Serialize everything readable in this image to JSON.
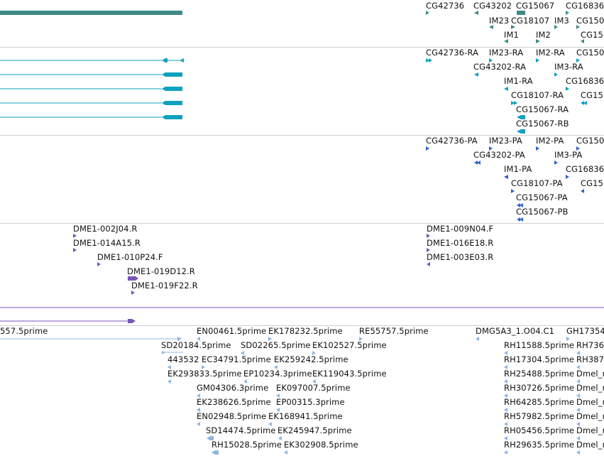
{
  "colors": {
    "gene": "#3d8a86",
    "transcript": "#0fa1bf",
    "protein": "#2f63c9",
    "marker": "#7756b8",
    "est": "#8fb6df",
    "separator": "#cfcfcf"
  },
  "tracks": {
    "genes": {
      "labels": [
        "CG42736",
        "CG43202",
        "CG15067",
        "CG16836",
        "IM23",
        "CG18107",
        "IM3",
        "CG150",
        "IM1",
        "IM2",
        "CG15"
      ]
    },
    "transcripts": {
      "labels": [
        "CG42736-RA",
        "IM23-RA",
        "IM2-RA",
        "CG150",
        "CG43202-RA",
        "IM3-RA",
        "IM1-RA",
        "CG16836",
        "CG18107-RA",
        "CG15",
        "CG15067-RA",
        "CG15067-RB"
      ]
    },
    "proteins": {
      "labels": [
        "CG42736-PA",
        "IM23-PA",
        "IM2-PA",
        "CG150",
        "CG43202-PA",
        "IM3-PA",
        "IM1-PA",
        "CG16836",
        "CG18107-PA",
        "CG15",
        "CG15067-PA",
        "CG15067-PB"
      ]
    },
    "markers": {
      "labels": [
        "DME1-002J04.R",
        "DME1-014A15.R",
        "DME1-010P24.F",
        "DME1-019D12.R",
        "DME1-019F22.R",
        "DME1-009N04.F",
        "DME1-016E18.R",
        "DME1-003E03.R"
      ]
    },
    "ests": {
      "labels": [
        "557.5prime",
        "EN00461.5prime",
        "EK178232.5prime",
        "RE55757.5prime",
        "DMG5A3_1.O04.C1",
        "GH17354",
        "SD20184.5prime",
        "SD02265.5prime",
        "EK102527.5prime",
        "RH11588.5prime",
        "RH736",
        "443532",
        "EC34791.5prime",
        "EK259242.5prime",
        "RH17304.5prime",
        "RH387",
        "EK293833.5prime",
        "EP10234.3prime",
        "EK119043.5prime",
        "RH25488.5prime",
        "Dmel_r",
        "GM04306.3prime",
        "EK097007.5prime",
        "RH30726.5prime",
        "Dmel_r",
        "EK238626.5prime",
        "EP00315.3prime",
        "RH64285.5prime",
        "Dmel_r",
        "EN02948.5prime",
        "EK168941.5prime",
        "RH57982.5prime",
        "Dmel_r",
        "SD14474.5prime",
        "EK245947.5prime",
        "RH05456.5prime",
        "Dmel_r",
        "RH15028.5prime",
        "EK302908.5prime",
        "RH29635.5prime",
        "Dmel_r"
      ]
    }
  }
}
